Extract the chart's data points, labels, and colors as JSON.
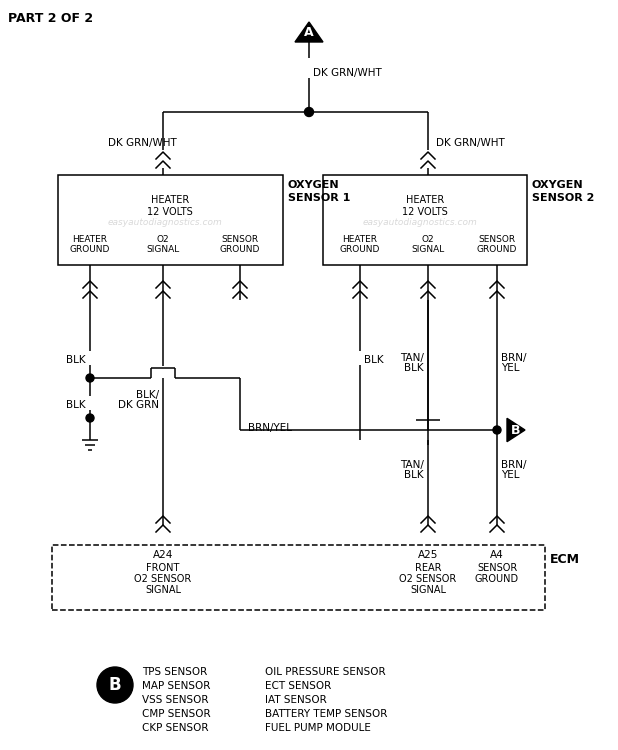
{
  "title": "PART 2 OF 2",
  "bg_color": "#ffffff",
  "line_color": "#000000",
  "watermark": "easyautodiagnostics.com",
  "sensor1_pins": [
    "HEATER\nGROUND",
    "O2\nSIGNAL",
    "SENSOR\nGROUND"
  ],
  "sensor2_pins": [
    "HEATER\nGROUND",
    "O2\nSIGNAL",
    "SENSOR\nGROUND"
  ],
  "wire_label_top": "DK GRN/WHT",
  "wire_left_top": "DK GRN/WHT",
  "wire_right_top": "DK GRN/WHT",
  "ecm_pins": [
    "A24",
    "A25",
    "A4"
  ],
  "ecm_labels_line1": [
    "FRONT",
    "REAR",
    "SENSOR"
  ],
  "ecm_labels_line2": [
    "O2 SENSOR",
    "O2 SENSOR",
    "GROUND"
  ],
  "ecm_labels_line3": [
    "SIGNAL",
    "SIGNAL",
    ""
  ],
  "ecm_title": "ECM",
  "legend_b_items_left": [
    "TPS SENSOR",
    "MAP SENSOR",
    "VSS SENSOR",
    "CMP SENSOR",
    "CKP SENSOR"
  ],
  "legend_b_items_right": [
    "OIL PRESSURE SENSOR",
    "ECT SENSOR",
    "IAT SENSOR",
    "BATTERY TEMP SENSOR",
    "FUEL PUMP MODULE"
  ],
  "connector_A": "A",
  "connector_B": "B",
  "blk": "BLK",
  "blk_dkgrn": "BLK/\nDK GRN",
  "brn_yel": "BRN/YEL",
  "tan_blk": "TAN/\nBLK",
  "brn_yel2": "BRN/\nYEL",
  "heater_12v": "HEATER\n12 VOLTS",
  "oxygen_s1_line1": "OXYGEN",
  "oxygen_s1_line2": "SENSOR 1",
  "oxygen_s2_line1": "OXYGEN",
  "oxygen_s2_line2": "SENSOR 2"
}
